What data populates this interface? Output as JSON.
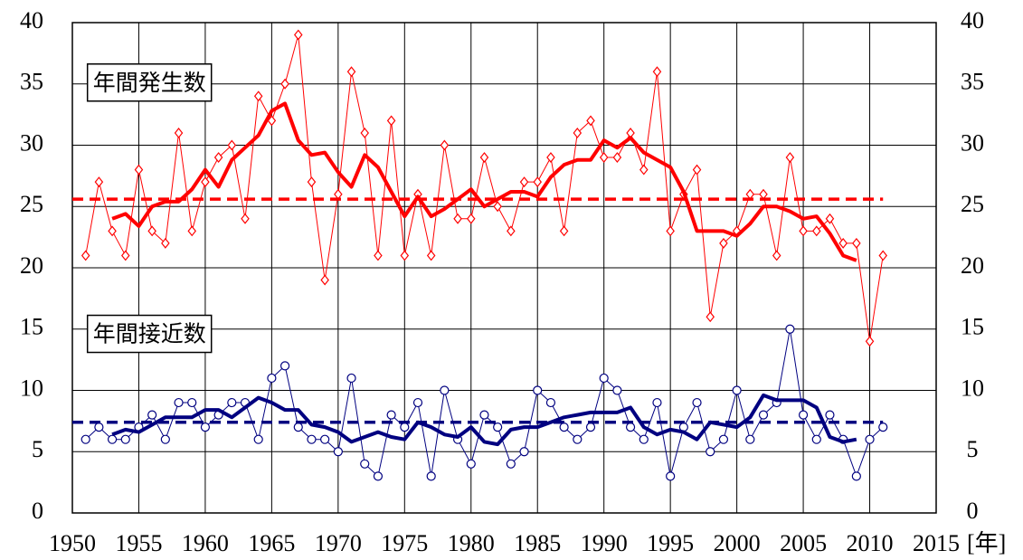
{
  "chart_data": {
    "type": "line",
    "xlabel": "[年]",
    "xlim": [
      1950,
      2015
    ],
    "xticks": [
      1950,
      1955,
      1960,
      1965,
      1970,
      1975,
      1980,
      1985,
      1990,
      1995,
      2000,
      2005,
      2010,
      2015
    ],
    "ylim": [
      0,
      40
    ],
    "yticks": [
      0,
      5,
      10,
      15,
      20,
      25,
      30,
      35,
      40
    ],
    "y2lim": [
      0,
      40
    ],
    "y2ticks": [
      0,
      5,
      10,
      15,
      20,
      25,
      30,
      35,
      40
    ],
    "grid": true,
    "annotations": [
      {
        "text": "年間発生数",
        "x": 1951,
        "y": 35
      },
      {
        "text": "年間接近数",
        "x": 1951,
        "y": 14.5
      }
    ],
    "series": [
      {
        "color": "#ff0000",
        "marker": "diamond",
        "line_width": 1,
        "dash": false,
        "x": [
          1951,
          1952,
          1953,
          1954,
          1955,
          1956,
          1957,
          1958,
          1959,
          1960,
          1961,
          1962,
          1963,
          1964,
          1965,
          1966,
          1967,
          1968,
          1969,
          1970,
          1971,
          1972,
          1973,
          1974,
          1975,
          1976,
          1977,
          1978,
          1979,
          1980,
          1981,
          1982,
          1983,
          1984,
          1985,
          1986,
          1987,
          1988,
          1989,
          1990,
          1991,
          1992,
          1993,
          1994,
          1995,
          1996,
          1997,
          1998,
          1999,
          2000,
          2001,
          2002,
          2003,
          2004,
          2005,
          2006,
          2007,
          2008,
          2009,
          2010,
          2011
        ],
        "values": [
          21,
          27,
          23,
          21,
          28,
          23,
          22,
          31,
          23,
          27,
          29,
          30,
          24,
          34,
          32,
          35,
          39,
          27,
          19,
          26,
          36,
          31,
          21,
          32,
          21,
          26,
          21,
          30,
          24,
          24,
          29,
          25,
          23,
          27,
          27,
          29,
          23,
          31,
          32,
          29,
          29,
          31,
          28,
          36,
          23,
          26,
          28,
          16,
          22,
          23,
          26,
          26,
          21,
          29,
          23,
          23,
          24,
          22,
          22,
          14,
          21
        ]
      },
      {
        "color": "#ff0000",
        "marker": "none",
        "line_width": 4,
        "dash": false,
        "x": [
          1953,
          1954,
          1955,
          1956,
          1957,
          1958,
          1959,
          1960,
          1961,
          1962,
          1963,
          1964,
          1965,
          1966,
          1967,
          1968,
          1969,
          1970,
          1971,
          1972,
          1973,
          1974,
          1975,
          1976,
          1977,
          1978,
          1979,
          1980,
          1981,
          1982,
          1983,
          1984,
          1985,
          1986,
          1987,
          1988,
          1989,
          1990,
          1991,
          1992,
          1993,
          1994,
          1995,
          1996,
          1997,
          1998,
          1999,
          2000,
          2001,
          2002,
          2003,
          2004,
          2005,
          2006,
          2007,
          2008,
          2009
        ],
        "values": [
          24,
          24.4,
          23.4,
          25,
          25.4,
          25.4,
          26.4,
          28,
          26.6,
          28.8,
          29.8,
          30.8,
          32.8,
          33.4,
          30.4,
          29.2,
          29.4,
          27.8,
          26.6,
          29.2,
          28.2,
          26.2,
          24.2,
          25.8,
          24.2,
          24.8,
          25.6,
          26.4,
          25,
          25.6,
          26.2,
          26.2,
          25.8,
          27.4,
          28.4,
          28.8,
          28.8,
          30.4,
          29.8,
          30.6,
          29.4,
          28.8,
          28.2,
          26.2,
          23,
          23,
          23,
          22.6,
          23.6,
          25,
          25,
          24.6,
          24,
          24.2,
          22.8,
          21,
          20.6
        ]
      },
      {
        "color": "#ff0000",
        "marker": "none",
        "line_width": 3.5,
        "dash": true,
        "x": [
          1950,
          2011
        ],
        "values": [
          25.6,
          25.6
        ]
      },
      {
        "color": "#000080",
        "marker": "circle",
        "line_width": 1,
        "dash": false,
        "x": [
          1951,
          1952,
          1953,
          1954,
          1955,
          1956,
          1957,
          1958,
          1959,
          1960,
          1961,
          1962,
          1963,
          1964,
          1965,
          1966,
          1967,
          1968,
          1969,
          1970,
          1971,
          1972,
          1973,
          1974,
          1975,
          1976,
          1977,
          1978,
          1979,
          1980,
          1981,
          1982,
          1983,
          1984,
          1985,
          1986,
          1987,
          1988,
          1989,
          1990,
          1991,
          1992,
          1993,
          1994,
          1995,
          1996,
          1997,
          1998,
          1999,
          2000,
          2001,
          2002,
          2003,
          2004,
          2005,
          2006,
          2007,
          2008,
          2009,
          2010,
          2011
        ],
        "values": [
          6,
          7,
          6,
          6,
          7,
          8,
          6,
          9,
          9,
          7,
          8,
          9,
          9,
          6,
          11,
          12,
          7,
          6,
          6,
          5,
          11,
          4,
          3,
          8,
          7,
          9,
          3,
          10,
          6,
          4,
          8,
          7,
          4,
          5,
          10,
          9,
          7,
          6,
          7,
          11,
          10,
          7,
          6,
          9,
          3,
          7,
          9,
          5,
          6,
          10,
          6,
          8,
          9,
          15,
          8,
          6,
          8,
          6,
          3,
          6,
          7
        ]
      },
      {
        "color": "#000080",
        "marker": "none",
        "line_width": 4,
        "dash": false,
        "x": [
          1953,
          1954,
          1955,
          1956,
          1957,
          1958,
          1959,
          1960,
          1961,
          1962,
          1963,
          1964,
          1965,
          1966,
          1967,
          1968,
          1969,
          1970,
          1971,
          1972,
          1973,
          1974,
          1975,
          1976,
          1977,
          1978,
          1979,
          1980,
          1981,
          1982,
          1983,
          1984,
          1985,
          1986,
          1987,
          1988,
          1989,
          1990,
          1991,
          1992,
          1993,
          1994,
          1995,
          1996,
          1997,
          1998,
          1999,
          2000,
          2001,
          2002,
          2003,
          2004,
          2005,
          2006,
          2007,
          2008,
          2009
        ],
        "values": [
          6.4,
          6.8,
          6.6,
          7.2,
          7.8,
          7.8,
          7.8,
          8.4,
          8.4,
          7.8,
          8.6,
          9.4,
          9,
          8.4,
          8.4,
          7.2,
          7,
          6.6,
          5.8,
          6.2,
          6.6,
          6.2,
          6,
          7.4,
          7,
          6.4,
          6.2,
          7,
          5.8,
          5.6,
          6.8,
          7,
          7,
          7.4,
          7.8,
          8,
          8.2,
          8.2,
          8.2,
          8.6,
          7,
          6.4,
          6.8,
          6.6,
          6,
          7.4,
          7.2,
          7,
          7.8,
          9.6,
          9.2,
          9.2,
          9.2,
          8.6,
          6.2,
          5.8,
          6
        ]
      },
      {
        "color": "#000080",
        "marker": "none",
        "line_width": 3.5,
        "dash": true,
        "x": [
          1950,
          2011
        ],
        "values": [
          7.4,
          7.4
        ]
      }
    ]
  }
}
